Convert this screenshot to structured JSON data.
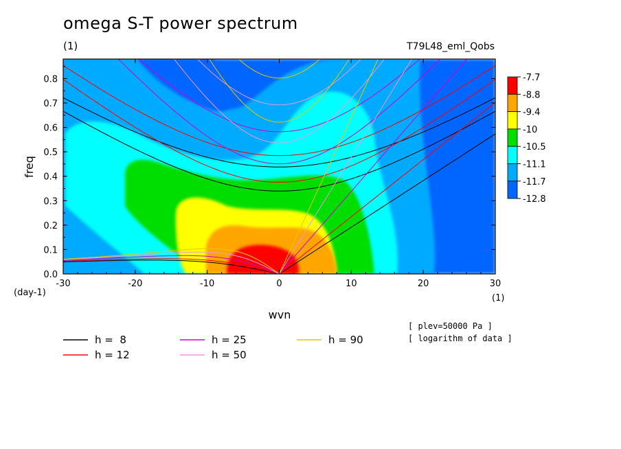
{
  "header": {
    "title": "omega S-T power spectrum",
    "subtitle": "(1)",
    "run": "T79L48_eml_Qobs",
    "note1": "[ plev=50000 Pa ]",
    "note2": "[ logarithm of data ]"
  },
  "chart_data": {
    "type": "heatmap",
    "xlabel": "wvn",
    "ylabel": "freq",
    "x_unit": "(1)",
    "y_unit": "(day-1)",
    "xlim": [
      -30,
      30
    ],
    "ylim": [
      0,
      0.88
    ],
    "x_ticks": [
      "-30",
      "-20",
      "-10",
      "0",
      "10",
      "20",
      "30"
    ],
    "y_ticks": [
      "0.0",
      "0.1",
      "0.2",
      "0.3",
      "0.4",
      "0.5",
      "0.6",
      "0.7",
      "0.8"
    ],
    "colorbar": {
      "levels": [
        "-7.7",
        "-8.8",
        "-9.4",
        "-10",
        "-10.5",
        "-11.1",
        "-11.7",
        "-12.8"
      ],
      "colors": [
        "#ff0000",
        "#ffa500",
        "#ffff00",
        "#00dd00",
        "#00ffff",
        "#00aaff",
        "#0066ff"
      ]
    },
    "dispersion_legend": [
      {
        "label": "h =  8",
        "color": "#000000"
      },
      {
        "label": "h = 12",
        "color": "#ff0000"
      },
      {
        "label": "h = 25",
        "color": "#cc00cc"
      },
      {
        "label": "h = 50",
        "color": "#e69ae6"
      },
      {
        "label": "h = 90",
        "color": "#e6c800"
      }
    ],
    "equivalent_depths": [
      8,
      12,
      25,
      50,
      90
    ]
  }
}
